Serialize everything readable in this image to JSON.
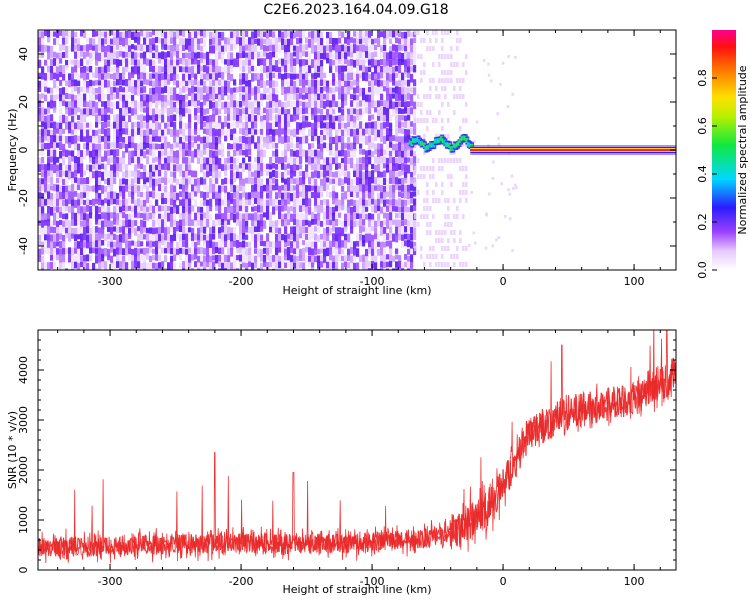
{
  "title": "C2E6.2023.164.04.09.G18",
  "colors": {
    "spectrum_palette": "rainbow",
    "snr_line": "#f03030",
    "noise_ink": "#7a2cff",
    "background": "#ffffff"
  },
  "chart_data": [
    {
      "type": "heatmap",
      "xlabel": "Height of straight line (km)",
      "ylabel": "Frequency (Hz)",
      "xlim": [
        -355,
        132
      ],
      "ylim": [
        -50,
        50
      ],
      "xticks": [
        -300,
        -200,
        -100,
        0,
        100
      ],
      "yticks": [
        -40,
        -20,
        0,
        20,
        40
      ],
      "colorbar": {
        "label": "Normalized spectral amplitude",
        "range": [
          0,
          1
        ],
        "ticks": [
          0.0,
          0.2,
          0.4,
          0.6,
          0.8
        ]
      },
      "regions": [
        {
          "x_from": -355,
          "x_to": -65,
          "description": "broadband noise, amplitude ~0.1-0.3 across all frequencies"
        },
        {
          "x_from": -72,
          "x_to": -25,
          "freq_hz_approx": [
            0,
            5
          ],
          "amplitude": [
            0.3,
            0.6
          ],
          "description": "emerging tone"
        },
        {
          "x_from": -25,
          "x_to": 132,
          "freq_hz": 0,
          "amplitude": 1.0,
          "description": "strong carrier line"
        }
      ],
      "grid": false
    },
    {
      "type": "line",
      "xlabel": "Height of straight line (km)",
      "ylabel": "SNR (10 * v/v)",
      "xlim": [
        -355,
        132
      ],
      "ylim": [
        0,
        4800
      ],
      "xticks": [
        -300,
        -200,
        -100,
        0,
        100
      ],
      "yticks": [
        0,
        1000,
        2000,
        3000,
        4000
      ],
      "series": [
        {
          "x": [
            -355,
            -300,
            -250,
            -200,
            -150,
            -100,
            -60,
            -30,
            -10,
            0,
            10,
            20,
            30,
            50,
            75,
            100,
            115,
            132
          ],
          "y": [
            450,
            480,
            520,
            540,
            520,
            560,
            620,
            850,
            1300,
            1700,
            2200,
            2750,
            2900,
            3150,
            3300,
            3450,
            3600,
            3950
          ]
        }
      ],
      "spikes": [
        {
          "x": -220,
          "y": 2350
        },
        {
          "x": -160,
          "y": 1950
        },
        {
          "x": 45,
          "y": 4500
        },
        {
          "x": 125,
          "y": 4800
        }
      ],
      "grid": false
    }
  ]
}
